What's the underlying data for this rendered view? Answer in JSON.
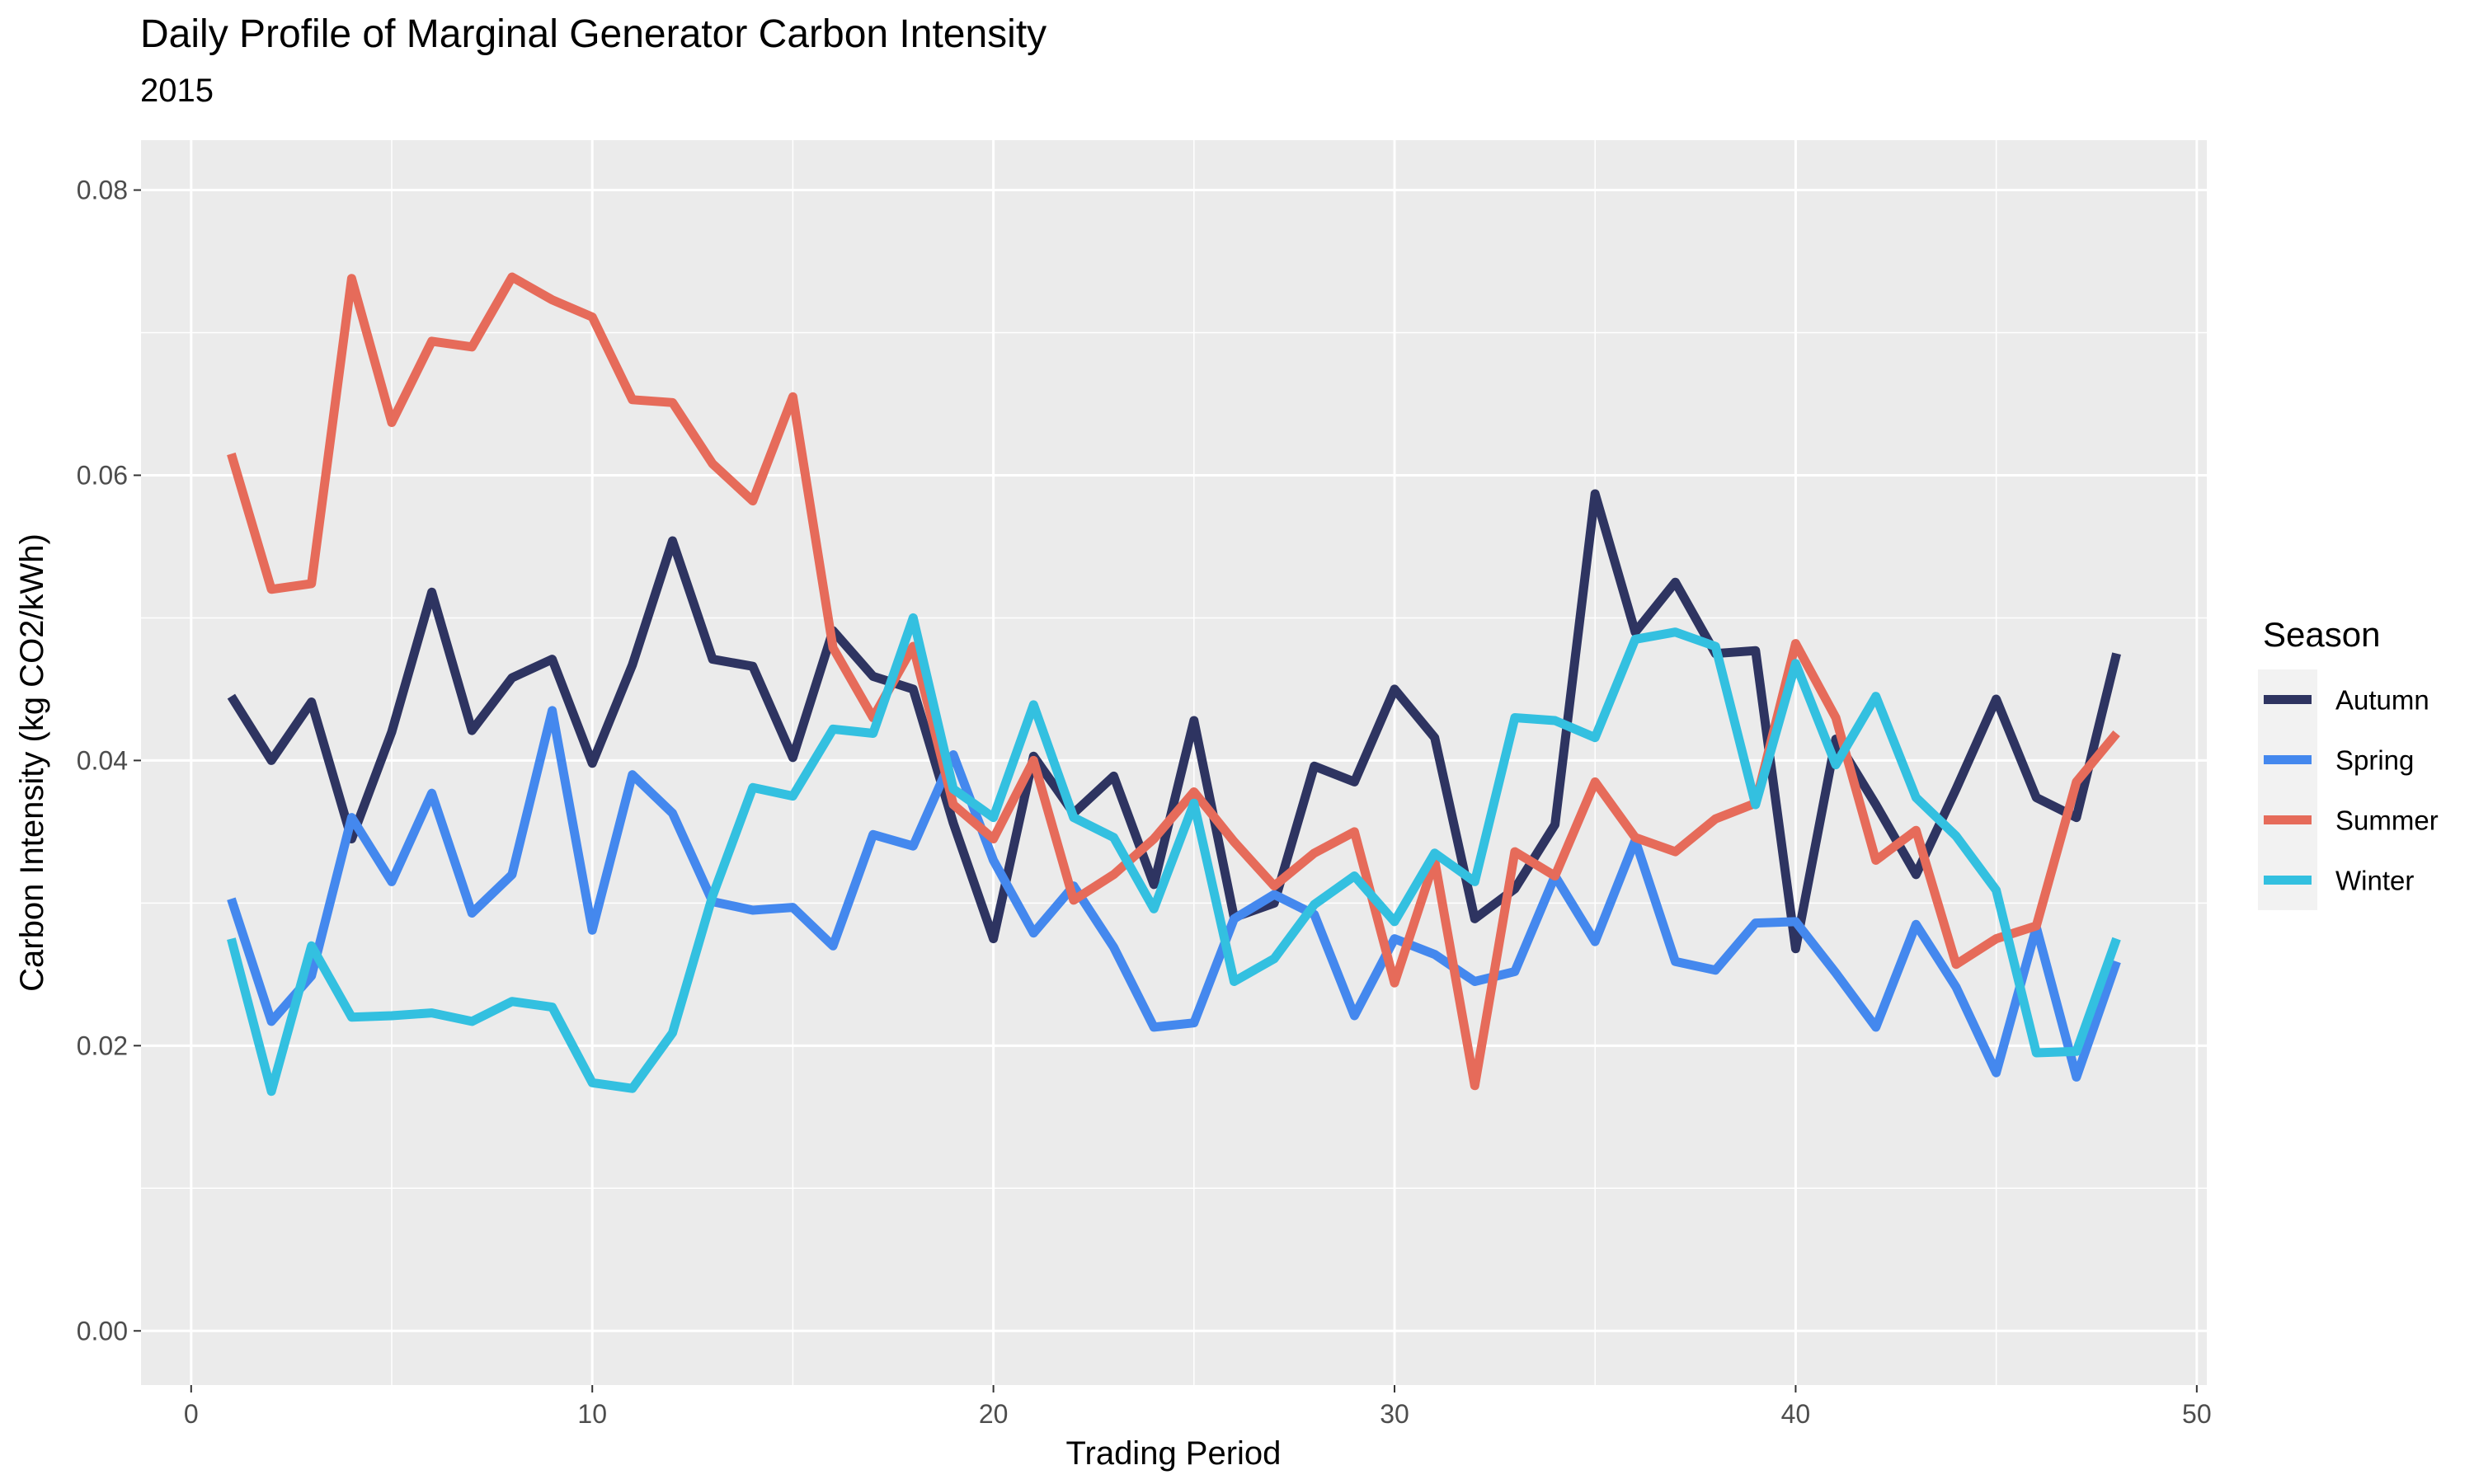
{
  "title": "Daily Profile of Marginal Generator Carbon Intensity",
  "subtitle": "2015",
  "chart_data": {
    "type": "line",
    "title": "Daily Profile of Marginal Generator Carbon Intensity",
    "subtitle": "2015",
    "xlabel": "Trading Period",
    "ylabel": "Carbon Intensity (kg CO2/kWh)",
    "xlim": [
      -1.25,
      50.25
    ],
    "ylim": [
      -0.0038,
      0.0835
    ],
    "x_ticks": [
      0,
      10,
      20,
      30,
      40,
      50
    ],
    "y_ticks": [
      0.0,
      0.02,
      0.04,
      0.06,
      0.08
    ],
    "x_tick_labels": [
      "0",
      "10",
      "20",
      "30",
      "40",
      "50"
    ],
    "y_tick_labels": [
      "0.00",
      "0.02",
      "0.04",
      "0.06",
      "0.08"
    ],
    "grid": true,
    "legend_title": "Season",
    "legend_position": "right",
    "x": [
      1,
      2,
      3,
      4,
      5,
      6,
      7,
      8,
      9,
      10,
      11,
      12,
      13,
      14,
      15,
      16,
      17,
      18,
      19,
      20,
      21,
      22,
      23,
      24,
      25,
      26,
      27,
      28,
      29,
      30,
      31,
      32,
      33,
      34,
      35,
      36,
      37,
      38,
      39,
      40,
      41,
      42,
      43,
      44,
      45,
      46,
      47,
      48
    ],
    "series": [
      {
        "name": "Autumn",
        "color": "#2e3461",
        "values": [
          0.0445,
          0.04,
          0.0441,
          0.0345,
          0.042,
          0.0518,
          0.0421,
          0.0458,
          0.0471,
          0.0398,
          0.0467,
          0.0554,
          0.0471,
          0.0466,
          0.0402,
          0.0491,
          0.0459,
          0.045,
          0.0356,
          0.0275,
          0.0403,
          0.0363,
          0.0389,
          0.0313,
          0.0428,
          0.029,
          0.03,
          0.0396,
          0.0385,
          0.045,
          0.0416,
          0.0289,
          0.031,
          0.0355,
          0.0587,
          0.049,
          0.0525,
          0.0475,
          0.0477,
          0.0268,
          0.0415,
          0.0369,
          0.032,
          0.038,
          0.0443,
          0.0374,
          0.036,
          0.0475
        ]
      },
      {
        "name": "Spring",
        "color": "#4488ee",
        "values": [
          0.0303,
          0.0217,
          0.0249,
          0.036,
          0.0315,
          0.0377,
          0.0293,
          0.032,
          0.0435,
          0.0281,
          0.039,
          0.0363,
          0.0301,
          0.0295,
          0.0297,
          0.027,
          0.0348,
          0.034,
          0.0404,
          0.033,
          0.0279,
          0.0312,
          0.0269,
          0.0213,
          0.0216,
          0.0289,
          0.0306,
          0.0292,
          0.0221,
          0.0275,
          0.0264,
          0.0245,
          0.0252,
          0.0319,
          0.0273,
          0.0344,
          0.0259,
          0.0253,
          0.0286,
          0.0287,
          0.0251,
          0.0213,
          0.0285,
          0.0241,
          0.0181,
          0.0283,
          0.0178,
          0.0259
        ]
      },
      {
        "name": "Summer",
        "color": "#e66b5a",
        "values": [
          0.0615,
          0.052,
          0.0524,
          0.0738,
          0.0637,
          0.0694,
          0.069,
          0.0739,
          0.0723,
          0.0711,
          0.0653,
          0.0651,
          0.0608,
          0.0582,
          0.0655,
          0.0479,
          0.043,
          0.048,
          0.0369,
          0.0345,
          0.04,
          0.0302,
          0.032,
          0.0345,
          0.0378,
          0.0343,
          0.0312,
          0.0335,
          0.035,
          0.0244,
          0.033,
          0.0172,
          0.0336,
          0.0319,
          0.0385,
          0.0346,
          0.0336,
          0.0359,
          0.037,
          0.0482,
          0.043,
          0.033,
          0.0351,
          0.0257,
          0.0275,
          0.0284,
          0.0385,
          0.0419
        ]
      },
      {
        "name": "Winter",
        "color": "#33c0e0",
        "values": [
          0.0275,
          0.0168,
          0.027,
          0.022,
          0.0221,
          0.0223,
          0.0217,
          0.0231,
          0.0227,
          0.0174,
          0.017,
          0.0209,
          0.0305,
          0.0381,
          0.0375,
          0.0422,
          0.0419,
          0.05,
          0.038,
          0.036,
          0.0439,
          0.036,
          0.0346,
          0.0296,
          0.037,
          0.0245,
          0.0261,
          0.0299,
          0.0319,
          0.0287,
          0.0335,
          0.0315,
          0.043,
          0.0428,
          0.0416,
          0.0485,
          0.049,
          0.048,
          0.0369,
          0.0468,
          0.0397,
          0.0445,
          0.0374,
          0.0347,
          0.0309,
          0.0195,
          0.0196,
          0.0275
        ]
      }
    ]
  }
}
